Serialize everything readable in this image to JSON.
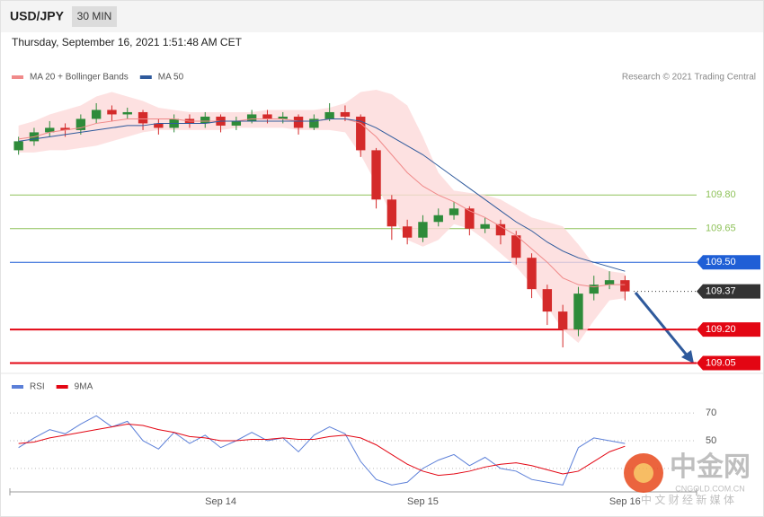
{
  "chart_data": [
    {
      "type": "candlestick",
      "title": "USD/JPY",
      "timeframe": "30 MIN",
      "subtitle": "Thursday, September 16, 2021 1:51:48 AM CET",
      "source": "Research © 2021 Trading Central",
      "up_color": "#2e8b3a",
      "down_color": "#d42a2a",
      "open": [
        110.0,
        110.04,
        110.08,
        110.1,
        110.09,
        110.14,
        110.18,
        110.16,
        110.17,
        110.12,
        110.1,
        110.14,
        110.12,
        110.15,
        110.11,
        110.13,
        110.16,
        110.14,
        110.15,
        110.1,
        110.14,
        110.17,
        110.15,
        110.0,
        109.78,
        109.66,
        109.61,
        109.68,
        109.71,
        109.74,
        109.65,
        109.67,
        109.62,
        109.52,
        109.38,
        109.28,
        109.2,
        109.36,
        109.4,
        109.42
      ],
      "high": [
        110.06,
        110.1,
        110.13,
        110.12,
        110.16,
        110.21,
        110.2,
        110.19,
        110.18,
        110.14,
        110.16,
        110.16,
        110.17,
        110.16,
        110.15,
        110.18,
        110.18,
        110.17,
        110.16,
        110.16,
        110.21,
        110.2,
        110.16,
        110.01,
        109.8,
        109.69,
        109.71,
        109.74,
        109.77,
        109.75,
        109.7,
        109.69,
        109.64,
        109.54,
        109.4,
        109.31,
        109.39,
        109.44,
        109.46,
        109.44
      ],
      "low": [
        109.98,
        110.02,
        110.06,
        110.06,
        110.07,
        110.12,
        110.13,
        110.14,
        110.09,
        110.07,
        110.08,
        110.1,
        110.1,
        110.08,
        110.09,
        110.12,
        110.12,
        110.12,
        110.07,
        110.09,
        110.13,
        110.13,
        109.97,
        109.74,
        109.6,
        109.58,
        109.59,
        109.66,
        109.69,
        109.62,
        109.63,
        109.58,
        109.49,
        109.34,
        109.22,
        109.12,
        109.17,
        109.33,
        109.38,
        109.33
      ],
      "close": [
        110.04,
        110.08,
        110.1,
        110.09,
        110.14,
        110.18,
        110.16,
        110.17,
        110.12,
        110.1,
        110.14,
        110.12,
        110.15,
        110.11,
        110.13,
        110.16,
        110.14,
        110.15,
        110.1,
        110.14,
        110.17,
        110.15,
        110.0,
        109.78,
        109.66,
        109.61,
        109.68,
        109.71,
        109.74,
        109.65,
        109.67,
        109.62,
        109.52,
        109.38,
        109.28,
        109.2,
        109.36,
        109.4,
        109.42,
        109.37
      ],
      "series": [
        {
          "name": "MA 20 + Bollinger Bands",
          "color": "#f08a8a",
          "band_color": "#fcd9d9",
          "values": [
            110.05,
            110.06,
            110.08,
            110.09,
            110.1,
            110.12,
            110.13,
            110.14,
            110.14,
            110.14,
            110.14,
            110.13,
            110.13,
            110.13,
            110.13,
            110.14,
            110.14,
            110.14,
            110.13,
            110.13,
            110.14,
            110.14,
            110.12,
            110.06,
            109.98,
            109.9,
            109.84,
            109.8,
            109.77,
            109.73,
            109.7,
            109.66,
            109.62,
            109.56,
            109.5,
            109.43,
            109.4,
            109.39,
            109.4,
            109.4
          ],
          "upper": [
            110.11,
            110.13,
            110.16,
            110.18,
            110.2,
            110.24,
            110.26,
            110.24,
            110.22,
            110.19,
            110.18,
            110.17,
            110.17,
            110.17,
            110.17,
            110.17,
            110.18,
            110.18,
            110.18,
            110.18,
            110.19,
            110.21,
            110.26,
            110.27,
            110.25,
            110.2,
            110.06,
            109.9,
            109.82,
            109.81,
            109.8,
            109.78,
            109.74,
            109.7,
            109.68,
            109.66,
            109.58,
            109.49,
            109.46,
            109.45
          ],
          "lower": [
            109.99,
            109.99,
            110.0,
            110.0,
            110.01,
            110.02,
            110.04,
            110.06,
            110.08,
            110.09,
            110.09,
            110.09,
            110.09,
            110.09,
            110.1,
            110.1,
            110.1,
            110.1,
            110.09,
            110.09,
            110.09,
            110.08,
            109.98,
            109.85,
            109.71,
            109.6,
            109.57,
            109.6,
            109.67,
            109.65,
            109.6,
            109.54,
            109.48,
            109.4,
            109.3,
            109.2,
            109.14,
            109.24,
            109.33,
            109.34
          ]
        },
        {
          "name": "MA 50",
          "color": "#2f5a9c",
          "values": [
            110.04,
            110.05,
            110.06,
            110.07,
            110.08,
            110.09,
            110.1,
            110.11,
            110.11,
            110.12,
            110.12,
            110.12,
            110.12,
            110.13,
            110.13,
            110.13,
            110.13,
            110.13,
            110.13,
            110.13,
            110.14,
            110.14,
            110.13,
            110.1,
            110.06,
            110.02,
            109.98,
            109.93,
            109.88,
            109.83,
            109.78,
            109.73,
            109.68,
            109.64,
            109.59,
            109.55,
            109.52,
            109.5,
            109.48,
            109.46
          ]
        }
      ],
      "ylim": [
        109.02,
        110.27
      ],
      "levels": [
        {
          "value": 109.8,
          "label": "109.80",
          "color": "#8fc25a",
          "badge": false,
          "line": "solid"
        },
        {
          "value": 109.65,
          "label": "109.65",
          "color": "#8fc25a",
          "badge": false,
          "line": "solid"
        },
        {
          "value": 109.5,
          "label": "109.50",
          "color": "#1f5fd6",
          "badge": true,
          "line": "solid"
        },
        {
          "value": 109.37,
          "label": "109.37",
          "color": "#333333",
          "badge": true,
          "line": "dotted"
        },
        {
          "value": 109.2,
          "label": "109.20",
          "color": "#e30613",
          "badge": true,
          "line": "thick"
        },
        {
          "value": 109.05,
          "label": "109.05",
          "color": "#e30613",
          "badge": true,
          "line": "thick"
        }
      ]
    },
    {
      "type": "line",
      "categories": [
        null,
        null,
        null,
        null,
        null,
        null,
        null,
        null,
        null,
        null,
        null,
        null,
        null,
        "Sep 14",
        null,
        null,
        null,
        null,
        null,
        null,
        null,
        null,
        null,
        null,
        null,
        null,
        "Sep 15",
        null,
        null,
        null,
        null,
        null,
        null,
        null,
        null,
        null,
        null,
        null,
        null,
        "Sep 16"
      ],
      "series": [
        {
          "name": "RSI",
          "color": "#5b7fd8",
          "values": [
            45,
            52,
            58,
            55,
            62,
            68,
            60,
            64,
            50,
            44,
            56,
            48,
            54,
            45,
            50,
            56,
            50,
            52,
            42,
            54,
            60,
            55,
            35,
            22,
            18,
            20,
            30,
            36,
            40,
            32,
            38,
            30,
            28,
            22,
            20,
            18,
            45,
            52,
            50,
            48
          ]
        },
        {
          "name": "9MA",
          "color": "#e30613",
          "values": [
            48,
            49,
            52,
            54,
            56,
            58,
            60,
            62,
            61,
            58,
            56,
            53,
            52,
            50,
            50,
            51,
            51,
            52,
            51,
            51,
            53,
            54,
            52,
            47,
            40,
            33,
            28,
            25,
            26,
            28,
            31,
            33,
            34,
            32,
            29,
            26,
            28,
            35,
            42,
            46
          ]
        }
      ],
      "ylim": [
        15,
        85
      ],
      "yticks": [
        70,
        50
      ],
      "guides": [
        30,
        50,
        70
      ]
    }
  ],
  "watermark": {
    "logo": "中金网",
    "domain": "CNGOLD.COM.CN",
    "slogan": "中 文 财 经 新 媒 体"
  }
}
